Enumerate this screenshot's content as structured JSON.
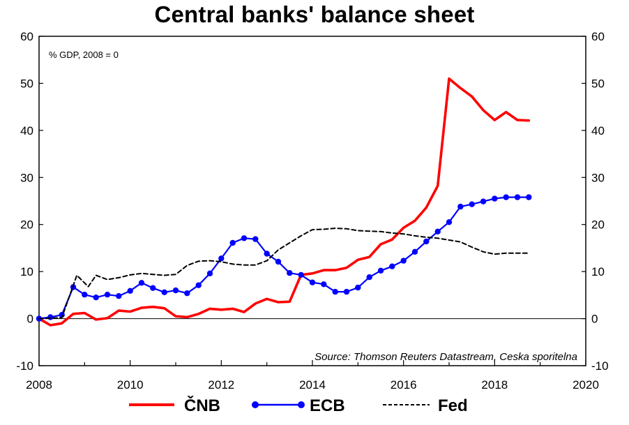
{
  "chart_data": {
    "type": "line",
    "title": "Central banks' balance sheet",
    "unit_note": "% GDP, 2008 = 0",
    "source": "Source: Thomson Reuters Datastream, Ceska sporitelna",
    "xlim": [
      2008,
      2020
    ],
    "ylim": [
      -10,
      60
    ],
    "x_ticks": [
      "2008",
      "2010",
      "2012",
      "2014",
      "2016",
      "2018",
      "2020"
    ],
    "y_ticks": [
      "-10",
      "0",
      "10",
      "20",
      "30",
      "40",
      "50",
      "60"
    ],
    "y_ticks_right": [
      "-10",
      "0",
      "10",
      "20",
      "30",
      "40",
      "50",
      "60"
    ],
    "grid": false,
    "legend_position": "bottom",
    "series": [
      {
        "name": "ČNB",
        "color": "#ff0000",
        "style": "solid",
        "x": [
          2008.0,
          2008.25,
          2008.5,
          2008.75,
          2009.0,
          2009.25,
          2009.5,
          2009.75,
          2010.0,
          2010.25,
          2010.5,
          2010.75,
          2011.0,
          2011.25,
          2011.5,
          2011.75,
          2012.0,
          2012.25,
          2012.5,
          2012.75,
          2013.0,
          2013.25,
          2013.5,
          2013.75,
          2014.0,
          2014.25,
          2014.5,
          2014.75,
          2015.0,
          2015.25,
          2015.5,
          2015.75,
          2016.0,
          2016.25,
          2016.5,
          2016.75,
          2017.0,
          2017.25,
          2017.5,
          2017.75,
          2018.0,
          2018.25,
          2018.5,
          2018.75
        ],
        "values": [
          0,
          -1.4,
          -1.0,
          1.0,
          1.2,
          -0.2,
          0.1,
          1.7,
          1.5,
          2.3,
          2.5,
          2.2,
          0.5,
          0.3,
          1.0,
          2.1,
          1.9,
          2.1,
          1.4,
          3.2,
          4.2,
          3.5,
          3.6,
          9.3,
          9.6,
          10.3,
          10.3,
          10.8,
          12.5,
          13.1,
          15.8,
          16.8,
          19.3,
          20.8,
          23.6,
          28.2,
          51.0,
          49.0,
          47.2,
          44.3,
          42.2,
          43.9,
          42.2,
          42.1
        ]
      },
      {
        "name": "ECB",
        "color": "#0000ff",
        "style": "solid-markers",
        "x": [
          2008.0,
          2008.25,
          2008.5,
          2008.75,
          2009.0,
          2009.25,
          2009.5,
          2009.75,
          2010.0,
          2010.25,
          2010.5,
          2010.75,
          2011.0,
          2011.25,
          2011.5,
          2011.75,
          2012.0,
          2012.25,
          2012.5,
          2012.75,
          2013.0,
          2013.25,
          2013.5,
          2013.75,
          2014.0,
          2014.25,
          2014.5,
          2014.75,
          2015.0,
          2015.25,
          2015.5,
          2015.75,
          2016.0,
          2016.25,
          2016.5,
          2016.75,
          2017.0,
          2017.25,
          2017.5,
          2017.75,
          2018.0,
          2018.25,
          2018.5,
          2018.75
        ],
        "values": [
          0,
          0.3,
          0.8,
          6.7,
          5.1,
          4.5,
          5.1,
          4.8,
          5.9,
          7.6,
          6.5,
          5.6,
          6.0,
          5.4,
          7.1,
          9.6,
          12.8,
          16.1,
          17.1,
          16.9,
          13.8,
          12.1,
          9.7,
          9.3,
          7.7,
          7.3,
          5.7,
          5.7,
          6.6,
          8.8,
          10.2,
          11.1,
          12.3,
          14.2,
          16.4,
          18.5,
          20.5,
          23.8,
          24.3,
          24.9,
          25.5,
          25.8,
          25.8,
          25.8
        ]
      },
      {
        "name": "Fed",
        "color": "#000000",
        "style": "dashed",
        "x": [
          2008.0,
          2008.5,
          2008.83,
          2009.08,
          2009.25,
          2009.5,
          2009.75,
          2010.0,
          2010.25,
          2010.5,
          2010.75,
          2011.0,
          2011.25,
          2011.5,
          2011.75,
          2012.0,
          2012.25,
          2012.5,
          2012.75,
          2013.0,
          2013.25,
          2013.5,
          2013.75,
          2014.0,
          2014.25,
          2014.5,
          2014.75,
          2015.0,
          2015.25,
          2015.5,
          2015.75,
          2016.0,
          2016.25,
          2016.5,
          2016.75,
          2017.0,
          2017.25,
          2017.5,
          2017.75,
          2018.0,
          2018.25,
          2018.5,
          2018.75
        ],
        "values": [
          0,
          0.2,
          9.2,
          6.8,
          9.2,
          8.3,
          8.7,
          9.3,
          9.6,
          9.4,
          9.2,
          9.4,
          11.3,
          12.2,
          12.3,
          12.1,
          11.6,
          11.4,
          11.4,
          12.3,
          14.6,
          16.1,
          17.6,
          18.9,
          19.0,
          19.2,
          19.1,
          18.7,
          18.6,
          18.5,
          18.2,
          18.0,
          17.6,
          17.3,
          17.1,
          16.7,
          16.3,
          15.2,
          14.2,
          13.7,
          13.9,
          13.9,
          13.9
        ]
      }
    ]
  }
}
